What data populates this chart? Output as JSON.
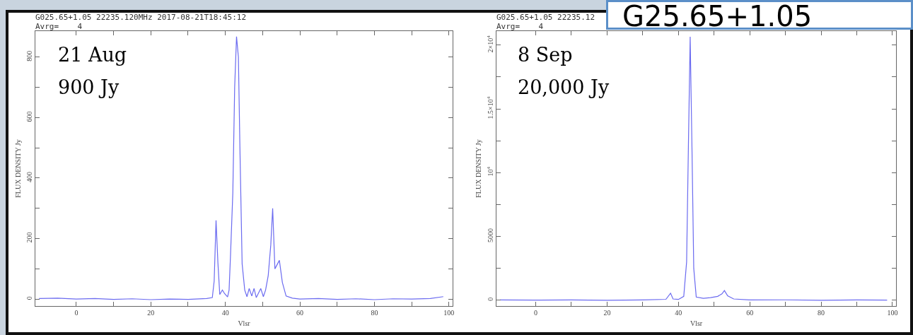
{
  "chart_data": [
    {
      "type": "line",
      "title": "G025.65+1.05 22235.120MHz 2017-08-21T18:45:12",
      "subtitle": "Avrg=    4",
      "xlabel": "Vlsr",
      "ylabel": "FLUX DENSITY Jy",
      "annotations": [
        "21 Aug",
        "900 Jy"
      ],
      "x": [
        -10,
        -5,
        0,
        5,
        10,
        15,
        20,
        25,
        30,
        35,
        36.5,
        37,
        37.5,
        38,
        38.5,
        39.2,
        39.8,
        40.6,
        41,
        41.4,
        42,
        42.5,
        43,
        43.5,
        43.9,
        44.5,
        45.2,
        45.8,
        46.4,
        47.1,
        47.7,
        48.3,
        49.5,
        50.2,
        50.8,
        51.5,
        52.2,
        52.7,
        53.3,
        54.5,
        55.3,
        56.3,
        58,
        60,
        65,
        70,
        75,
        80,
        85,
        90,
        95,
        98.5
      ],
      "series": [
        {
          "color": "#6b6bf0",
          "values": [
            2,
            3,
            0,
            2,
            -1,
            1,
            -2,
            0,
            -1,
            2,
            5,
            60,
            260,
            120,
            15,
            30,
            18,
            7,
            30,
            150,
            350,
            700,
            868,
            800,
            505,
            117,
            30,
            8,
            35,
            10,
            35,
            5,
            35,
            8,
            30,
            77,
            180,
            300,
            100,
            128,
            55,
            10,
            3,
            0,
            2,
            -1,
            1,
            -2,
            1,
            0,
            2,
            8
          ]
        }
      ],
      "xlim": [
        -11,
        101
      ],
      "xticks": [
        0,
        {
          "value": 10,
          "label": null
        },
        20,
        {
          "value": 30,
          "label": null
        },
        40,
        {
          "value": 50,
          "label": null
        },
        60,
        {
          "value": 70,
          "label": null
        },
        80,
        {
          "value": 90,
          "label": null
        },
        100
      ],
      "ylim": [
        -23,
        886
      ],
      "yticks": [
        0,
        {
          "value": 100,
          "label": null
        },
        200,
        {
          "value": 300,
          "label": null
        },
        400,
        {
          "value": 500,
          "label": null
        },
        600,
        {
          "value": 700,
          "label": null
        },
        800
      ],
      "grid": false,
      "marker": "none",
      "line_style": "solid"
    },
    {
      "type": "line",
      "title": "G025.65+1.05 22235.12",
      "subtitle": "Avrg=    4",
      "xlabel": "Vlsr",
      "ylabel": "FLUX DENSITY Jy",
      "annotations": [
        "8 Sep",
        "20,000 Jy",
        "G25.65+1.05"
      ],
      "x": [
        -10,
        0,
        10,
        20,
        30,
        36.5,
        37.8,
        38.5,
        40,
        41.5,
        42.3,
        42.8,
        43.3,
        43.8,
        44.3,
        45,
        47,
        49,
        51,
        52.2,
        52.9,
        53.8,
        55.5,
        60,
        70,
        80,
        90,
        98.5
      ],
      "series": [
        {
          "color": "#6b6bf0",
          "values": [
            20,
            10,
            20,
            0,
            20,
            70,
            550,
            100,
            60,
            300,
            3000,
            12000,
            20650,
            12000,
            2500,
            250,
            150,
            200,
            300,
            500,
            760,
            350,
            100,
            20,
            30,
            0,
            20,
            10
          ]
        }
      ],
      "xlim": [
        -11,
        101
      ],
      "xticks": [
        0,
        {
          "value": 10,
          "label": null
        },
        20,
        {
          "value": 30,
          "label": null
        },
        40,
        {
          "value": 50,
          "label": null
        },
        60,
        {
          "value": 70,
          "label": null
        },
        80,
        {
          "value": 90,
          "label": null
        },
        100
      ],
      "ylim": [
        -455,
        21100
      ],
      "yticks": [
        0,
        {
          "value": 2500,
          "label": null
        },
        5000,
        {
          "value": 7500,
          "label": null
        },
        {
          "value": 10000,
          "label": "10$^{4}$"
        },
        {
          "value": 12500,
          "label": null
        },
        {
          "value": 15000,
          "label": "1.5×10$^{4}$"
        },
        {
          "value": 17500,
          "label": null
        },
        {
          "value": 20000,
          "label": "2×10$^{4}$"
        }
      ],
      "grid": false,
      "marker": "none",
      "line_style": "solid"
    }
  ]
}
